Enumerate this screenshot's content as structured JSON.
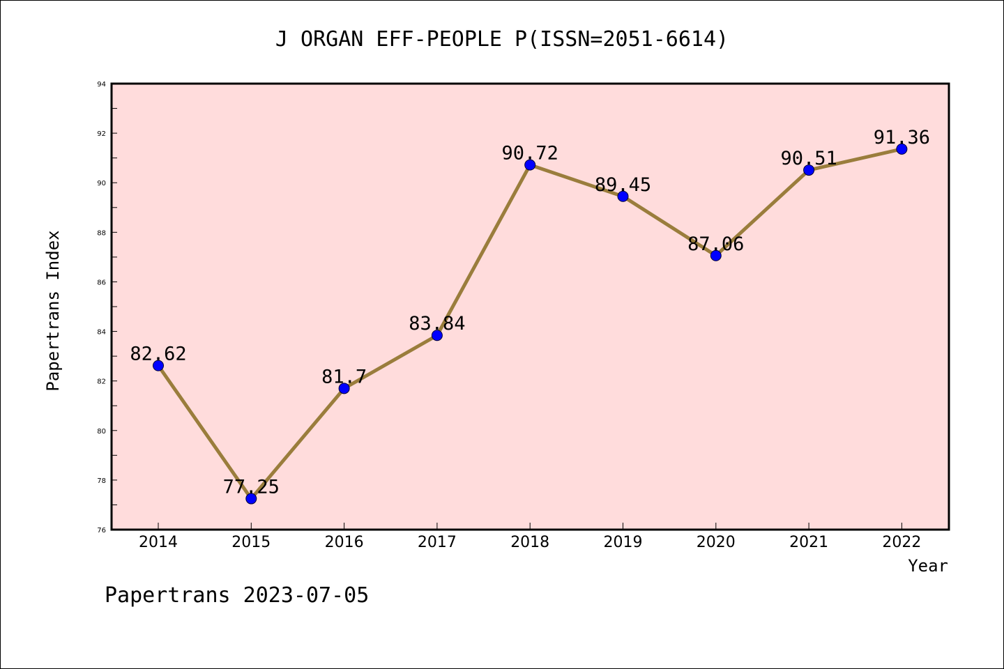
{
  "chart_data": {
    "type": "line",
    "title": "J ORGAN EFF-PEOPLE P(ISSN=2051-6614)",
    "xlabel": "Year",
    "ylabel": "Papertrans Index",
    "footer": "Papertrans 2023-07-05",
    "x": [
      "2014",
      "2015",
      "2016",
      "2017",
      "2018",
      "2019",
      "2020",
      "2021",
      "2022"
    ],
    "values": [
      82.62,
      77.25,
      81.7,
      83.84,
      90.72,
      89.45,
      87.06,
      90.51,
      91.36
    ],
    "value_labels": [
      "82.62",
      "77.25",
      "81.7",
      "83.84",
      "90.72",
      "89.45",
      "87.06",
      "90.51",
      "91.36"
    ],
    "ylim": [
      76,
      94
    ],
    "yticks": [
      "76",
      "78",
      "80",
      "82",
      "84",
      "86",
      "88",
      "90",
      "92",
      "94"
    ],
    "grid": false,
    "legend": "none",
    "colors": {
      "plot_background": "#ffdcdc",
      "line": "#9a7d3c",
      "marker": "#0000ff"
    }
  }
}
